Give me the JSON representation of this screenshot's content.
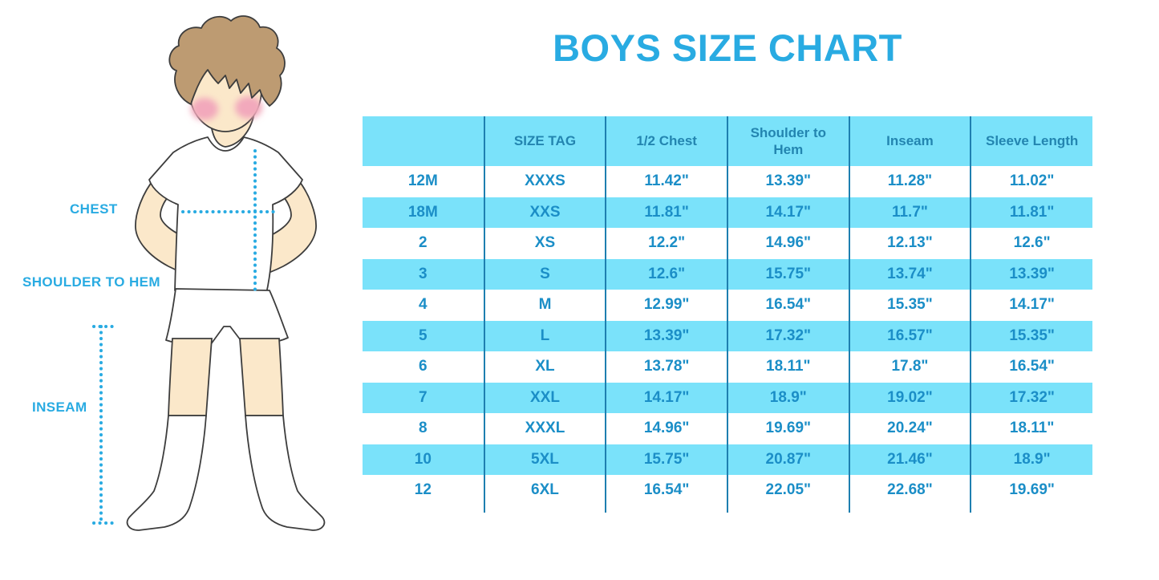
{
  "title": "BOYS SIZE CHART",
  "figure": {
    "description": "outline illustration of a boy in white t-shirt, shorts and knee socks with dotted measurement guides",
    "labels": {
      "chest": "CHEST",
      "shoulder_to_hem": "SHOULDER TO HEM",
      "inseam": "INSEAM"
    }
  },
  "colors": {
    "accent_blue": "#29ABE2",
    "table_band_cyan": "#7AE2FA",
    "table_body_text": "#1B8EC7",
    "table_header_text": "#2385B0",
    "column_divider": "#1E7FB0",
    "skin": "#FBE8CA",
    "hair": "#BD9B72",
    "blush": "#F2A9BC",
    "outline": "#3D3D3D"
  },
  "chart_data": {
    "type": "table",
    "title": "BOYS SIZE CHART",
    "columns": [
      "",
      "SIZE TAG",
      "1/2 Chest",
      "Shoulder to Hem",
      "Inseam",
      "Sleeve Length"
    ],
    "rows": [
      [
        "12M",
        "XXXS",
        "11.42\"",
        "13.39\"",
        "11.28\"",
        "11.02\""
      ],
      [
        "18M",
        "XXS",
        "11.81\"",
        "14.17\"",
        "11.7\"",
        "11.81\""
      ],
      [
        "2",
        "XS",
        "12.2\"",
        "14.96\"",
        "12.13\"",
        "12.6\""
      ],
      [
        "3",
        "S",
        "12.6\"",
        "15.75\"",
        "13.74\"",
        "13.39\""
      ],
      [
        "4",
        "M",
        "12.99\"",
        "16.54\"",
        "15.35\"",
        "14.17\""
      ],
      [
        "5",
        "L",
        "13.39\"",
        "17.32\"",
        "16.57\"",
        "15.35\""
      ],
      [
        "6",
        "XL",
        "13.78\"",
        "18.11\"",
        "17.8\"",
        "16.54\""
      ],
      [
        "7",
        "XXL",
        "14.17\"",
        "18.9\"",
        "19.02\"",
        "17.32\""
      ],
      [
        "8",
        "XXXL",
        "14.96\"",
        "19.69\"",
        "20.24\"",
        "18.11\""
      ],
      [
        "10",
        "5XL",
        "15.75\"",
        "20.87\"",
        "21.46\"",
        "18.9\""
      ],
      [
        "12",
        "6XL",
        "16.54\"",
        "22.05\"",
        "22.68\"",
        "19.69\""
      ]
    ],
    "striping": "alternate rows highlighted cyan starting with second data row",
    "grid": "vertical column dividers only, no outer border",
    "legend_position": "none"
  }
}
